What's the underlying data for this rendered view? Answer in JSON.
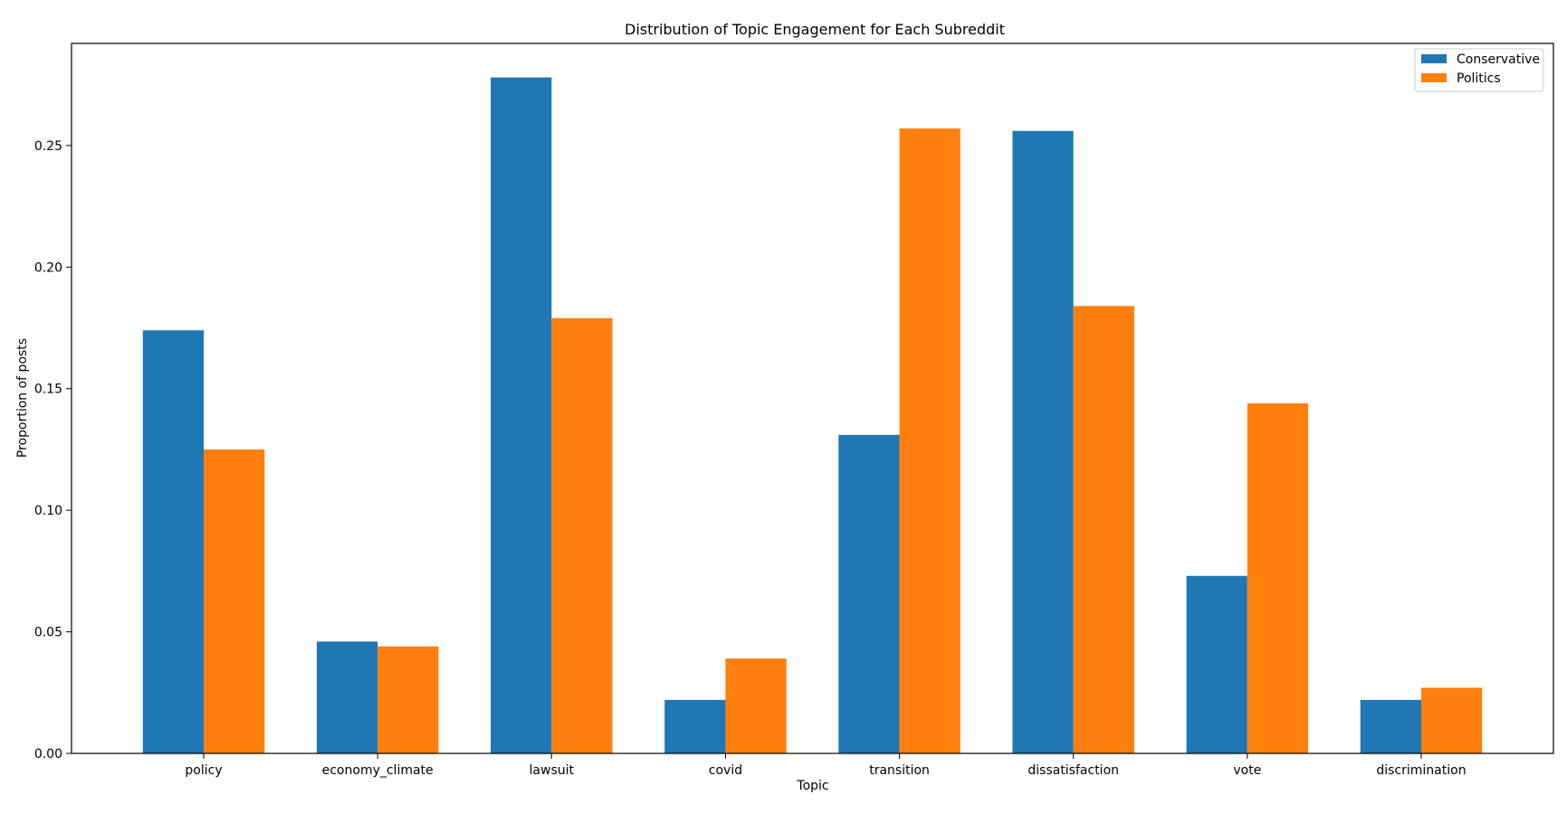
{
  "chart_data": {
    "type": "bar",
    "title": "Distribution of Topic Engagement for Each Subreddit",
    "xlabel": "Topic",
    "ylabel": "Proportion of posts",
    "categories": [
      "policy",
      "economy_climate",
      "lawsuit",
      "covid",
      "transition",
      "dissatisfaction",
      "vote",
      "discrimination"
    ],
    "series": [
      {
        "name": "Conservative",
        "color": "#1f77b4",
        "values": [
          0.174,
          0.046,
          0.278,
          0.022,
          0.131,
          0.256,
          0.073,
          0.022
        ]
      },
      {
        "name": "Politics",
        "color": "#ff7f0e",
        "values": [
          0.125,
          0.044,
          0.179,
          0.039,
          0.257,
          0.184,
          0.144,
          0.027
        ]
      }
    ],
    "ylim": [
      0,
      0.292
    ],
    "yticks": [
      "0.00",
      "0.05",
      "0.10",
      "0.15",
      "0.20",
      "0.25"
    ],
    "grid": false,
    "legend_position": "top-right"
  }
}
